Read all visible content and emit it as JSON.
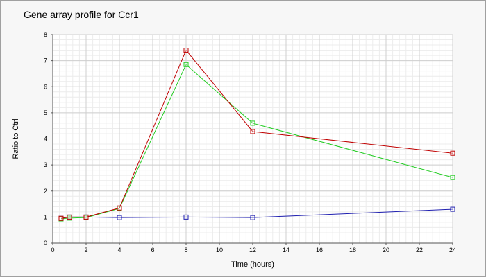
{
  "chart_data": {
    "type": "line",
    "title": "Gene array profile for Ccr1",
    "xlabel": "Time (hours)",
    "ylabel": "Ratio to Ctrl",
    "xlim": [
      0,
      24
    ],
    "ylim": [
      0,
      8
    ],
    "x_ticks": [
      0,
      2,
      4,
      6,
      8,
      10,
      12,
      14,
      16,
      18,
      20,
      22,
      24
    ],
    "y_ticks": [
      0,
      1,
      2,
      3,
      4,
      5,
      6,
      7,
      8
    ],
    "grid": true,
    "legend": "none",
    "x": [
      0.5,
      1,
      2,
      4,
      8,
      12,
      24
    ],
    "series": [
      {
        "color": "#c00000",
        "values": [
          0.95,
          1.0,
          1.0,
          1.35,
          7.4,
          4.28,
          3.45
        ]
      },
      {
        "color": "#22cc22",
        "values": [
          0.93,
          0.96,
          0.98,
          1.33,
          6.85,
          4.6,
          2.52
        ]
      },
      {
        "color": "#2020b0",
        "values": [
          0.95,
          1.0,
          1.0,
          0.98,
          1.0,
          0.98,
          1.3
        ]
      }
    ]
  }
}
